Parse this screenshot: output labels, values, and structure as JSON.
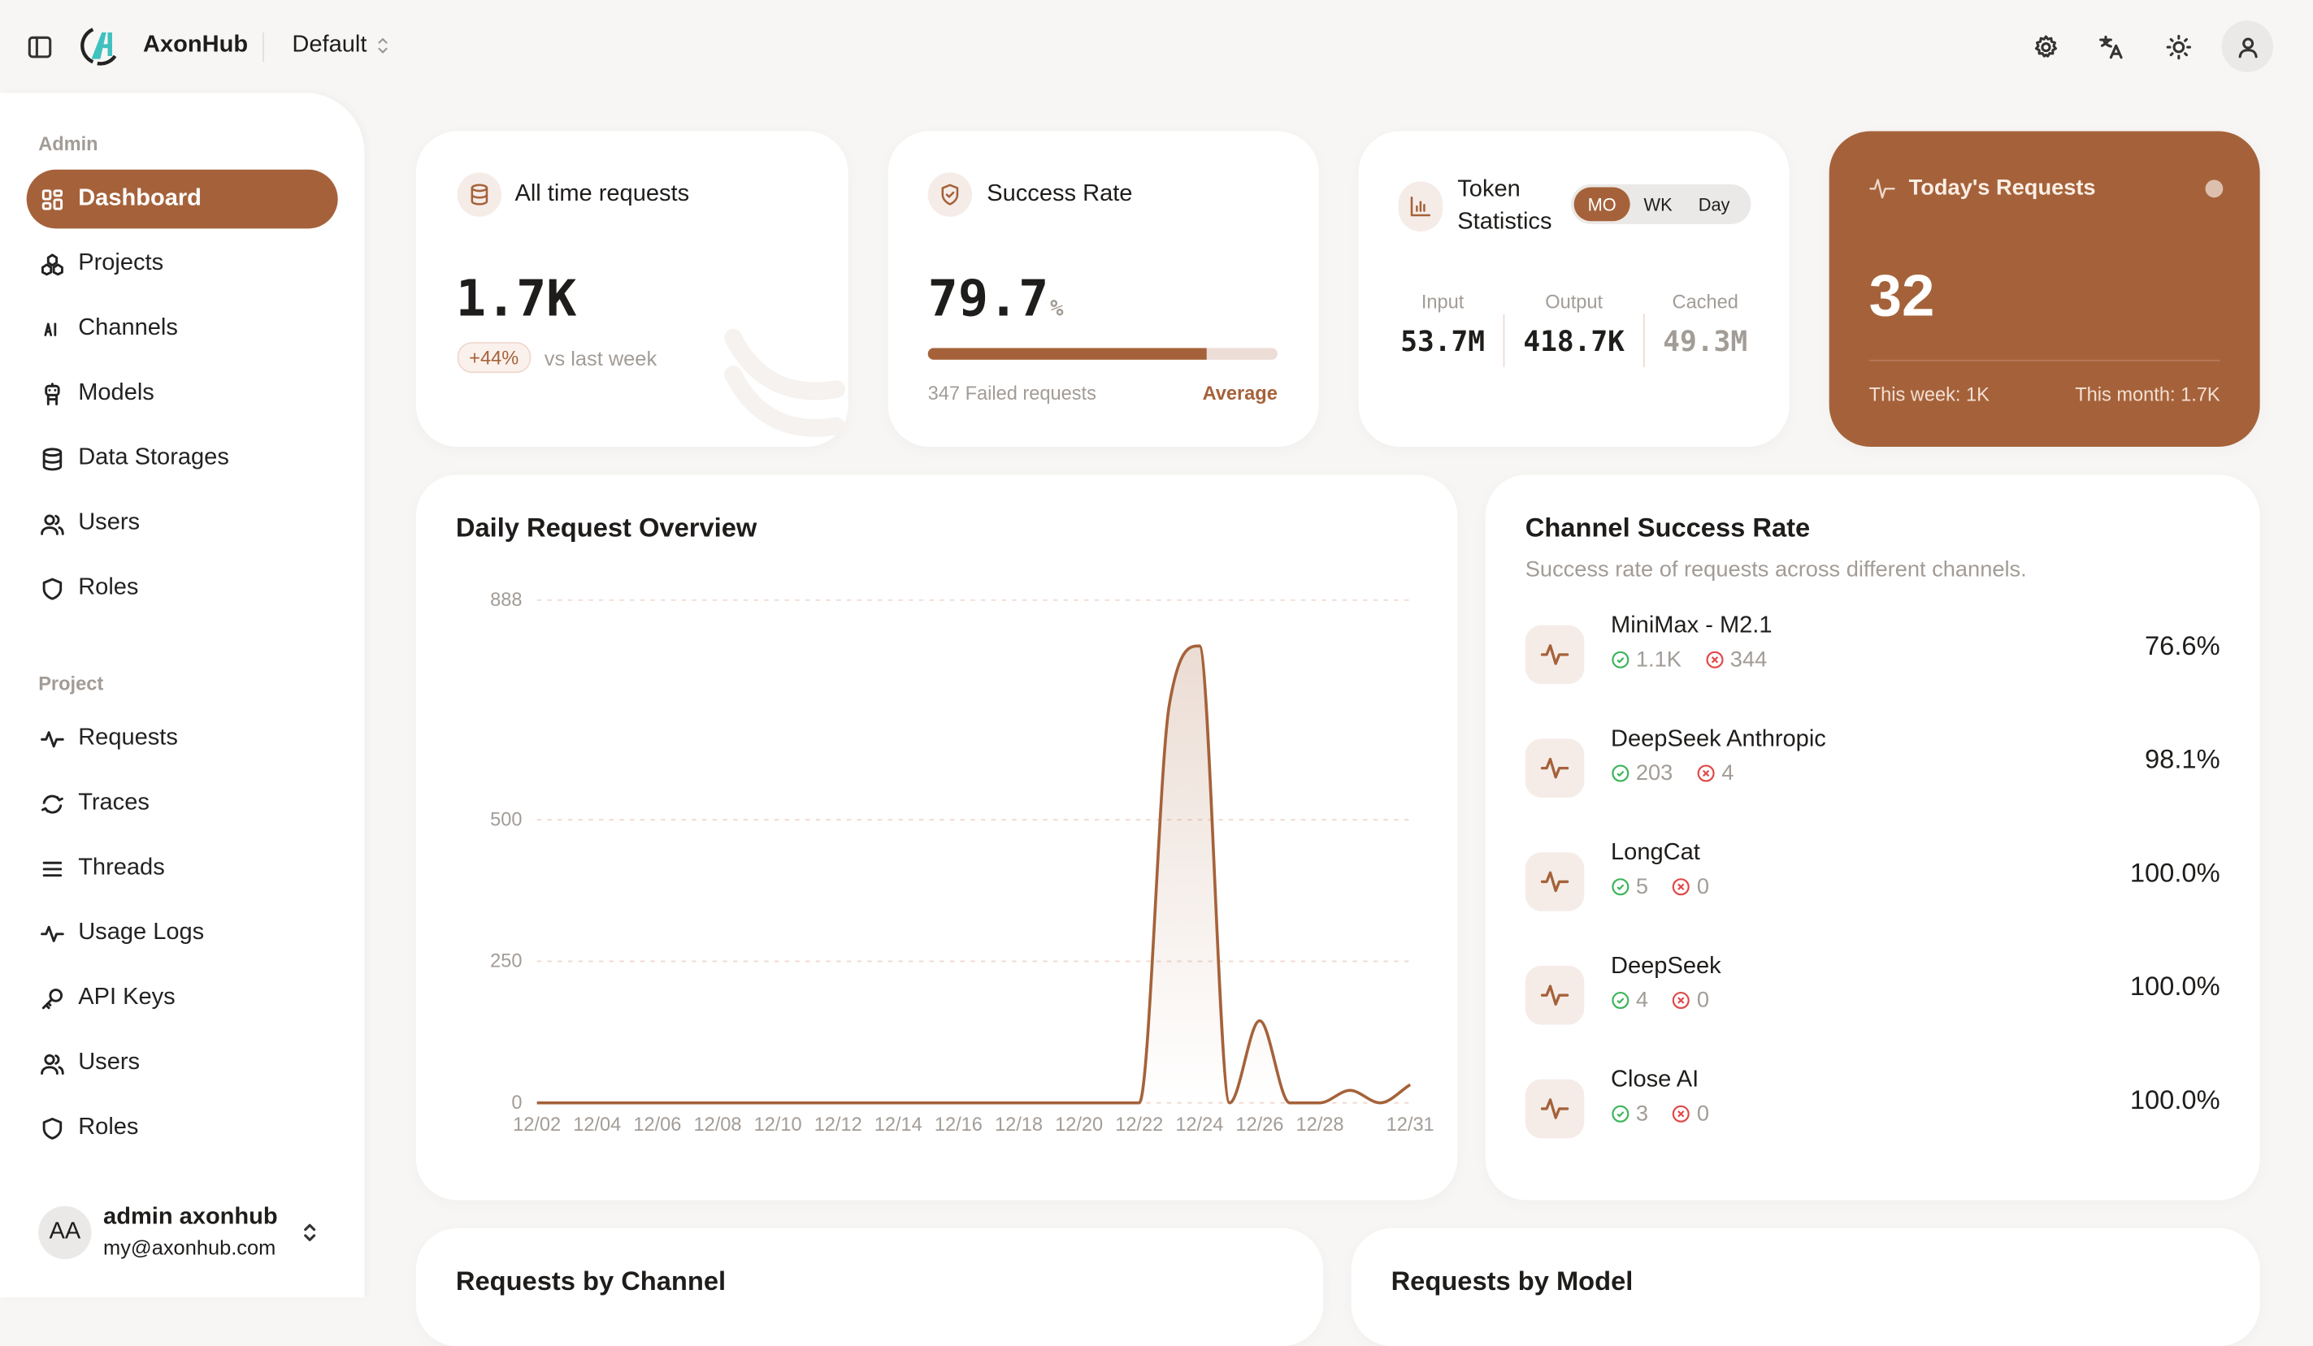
{
  "app": {
    "name": "AxonHub",
    "project_selector": "Default"
  },
  "topbar": {
    "icons": [
      "sidebar-toggle-icon",
      "settings-icon",
      "language-icon",
      "theme-sun-icon",
      "user-icon"
    ]
  },
  "sidebar": {
    "admin_label": "Admin",
    "admin_items": [
      {
        "label": "Dashboard",
        "icon": "dashboard-icon",
        "active": true
      },
      {
        "label": "Projects",
        "icon": "projects-icon"
      },
      {
        "label": "Channels",
        "icon": "ai-icon"
      },
      {
        "label": "Models",
        "icon": "robot-icon"
      },
      {
        "label": "Data Storages",
        "icon": "database-icon"
      },
      {
        "label": "Users",
        "icon": "users-icon"
      },
      {
        "label": "Roles",
        "icon": "shield-icon"
      }
    ],
    "project_label": "Project",
    "project_items": [
      {
        "label": "Requests",
        "icon": "activity-icon"
      },
      {
        "label": "Traces",
        "icon": "traces-icon"
      },
      {
        "label": "Threads",
        "icon": "menu-icon"
      },
      {
        "label": "Usage Logs",
        "icon": "activity-icon"
      },
      {
        "label": "API Keys",
        "icon": "key-icon"
      },
      {
        "label": "Users",
        "icon": "users-icon"
      },
      {
        "label": "Roles",
        "icon": "shield-icon"
      }
    ],
    "user": {
      "initials": "AA",
      "name": "admin axonhub",
      "email": "my@axonhub.com"
    }
  },
  "cards": {
    "all_time": {
      "title": "All time requests",
      "value": "1.7K",
      "change": "+44%",
      "change_label": "vs last week"
    },
    "success": {
      "title": "Success Rate",
      "value": "79.7",
      "unit": "%",
      "progress": 79.7,
      "failed": "347 Failed requests",
      "rating": "Average"
    },
    "tokens": {
      "title_line1": "Token",
      "title_line2": "Statistics",
      "periods": [
        "MO",
        "WK",
        "Day"
      ],
      "active_period": "MO",
      "input_label": "Input",
      "input": "53.7M",
      "output_label": "Output",
      "output": "418.7K",
      "cached_label": "Cached",
      "cached": "49.3M"
    },
    "today": {
      "title": "Today's Requests",
      "value": "32",
      "week": "This week: 1K",
      "month": "This month: 1.7K"
    }
  },
  "colors": {
    "accent": "#a5623a",
    "success": "#3cb55a",
    "error": "#e04848"
  },
  "chart_data": {
    "type": "area",
    "title": "Daily Request Overview",
    "x": [
      "12/02",
      "12/03",
      "12/04",
      "12/05",
      "12/06",
      "12/07",
      "12/08",
      "12/09",
      "12/10",
      "12/11",
      "12/12",
      "12/13",
      "12/14",
      "12/15",
      "12/16",
      "12/17",
      "12/18",
      "12/19",
      "12/20",
      "12/21",
      "12/22",
      "12/23",
      "12/24",
      "12/25",
      "12/26",
      "12/27",
      "12/28",
      "12/29",
      "12/30",
      "12/31"
    ],
    "values": [
      0,
      0,
      0,
      0,
      0,
      0,
      0,
      0,
      0,
      0,
      0,
      0,
      0,
      0,
      0,
      0,
      0,
      0,
      0,
      0,
      0,
      703,
      807,
      0,
      145,
      0,
      0,
      22,
      0,
      32
    ],
    "x_tick_labels": [
      "12/02",
      "12/04",
      "12/06",
      "12/08",
      "12/10",
      "12/12",
      "12/14",
      "12/16",
      "12/18",
      "12/20",
      "12/22",
      "12/24",
      "12/26",
      "12/28",
      "12/31"
    ],
    "y_ticks": [
      "0",
      "250",
      "500",
      "888"
    ],
    "ylim": [
      0,
      888
    ],
    "grid": true
  },
  "channels": {
    "title": "Channel Success Rate",
    "subtitle": "Success rate of requests across different channels.",
    "items": [
      {
        "name": "MiniMax - M2.1",
        "success": "1.1K",
        "failed": "344",
        "rate": "76.6%"
      },
      {
        "name": "DeepSeek Anthropic",
        "success": "203",
        "failed": "4",
        "rate": "98.1%"
      },
      {
        "name": "LongCat",
        "success": "5",
        "failed": "0",
        "rate": "100.0%"
      },
      {
        "name": "DeepSeek",
        "success": "4",
        "failed": "0",
        "rate": "100.0%"
      },
      {
        "name": "Close AI",
        "success": "3",
        "failed": "0",
        "rate": "100.0%"
      }
    ]
  },
  "bottom": {
    "by_channel": "Requests by Channel",
    "by_model": "Requests by Model"
  }
}
